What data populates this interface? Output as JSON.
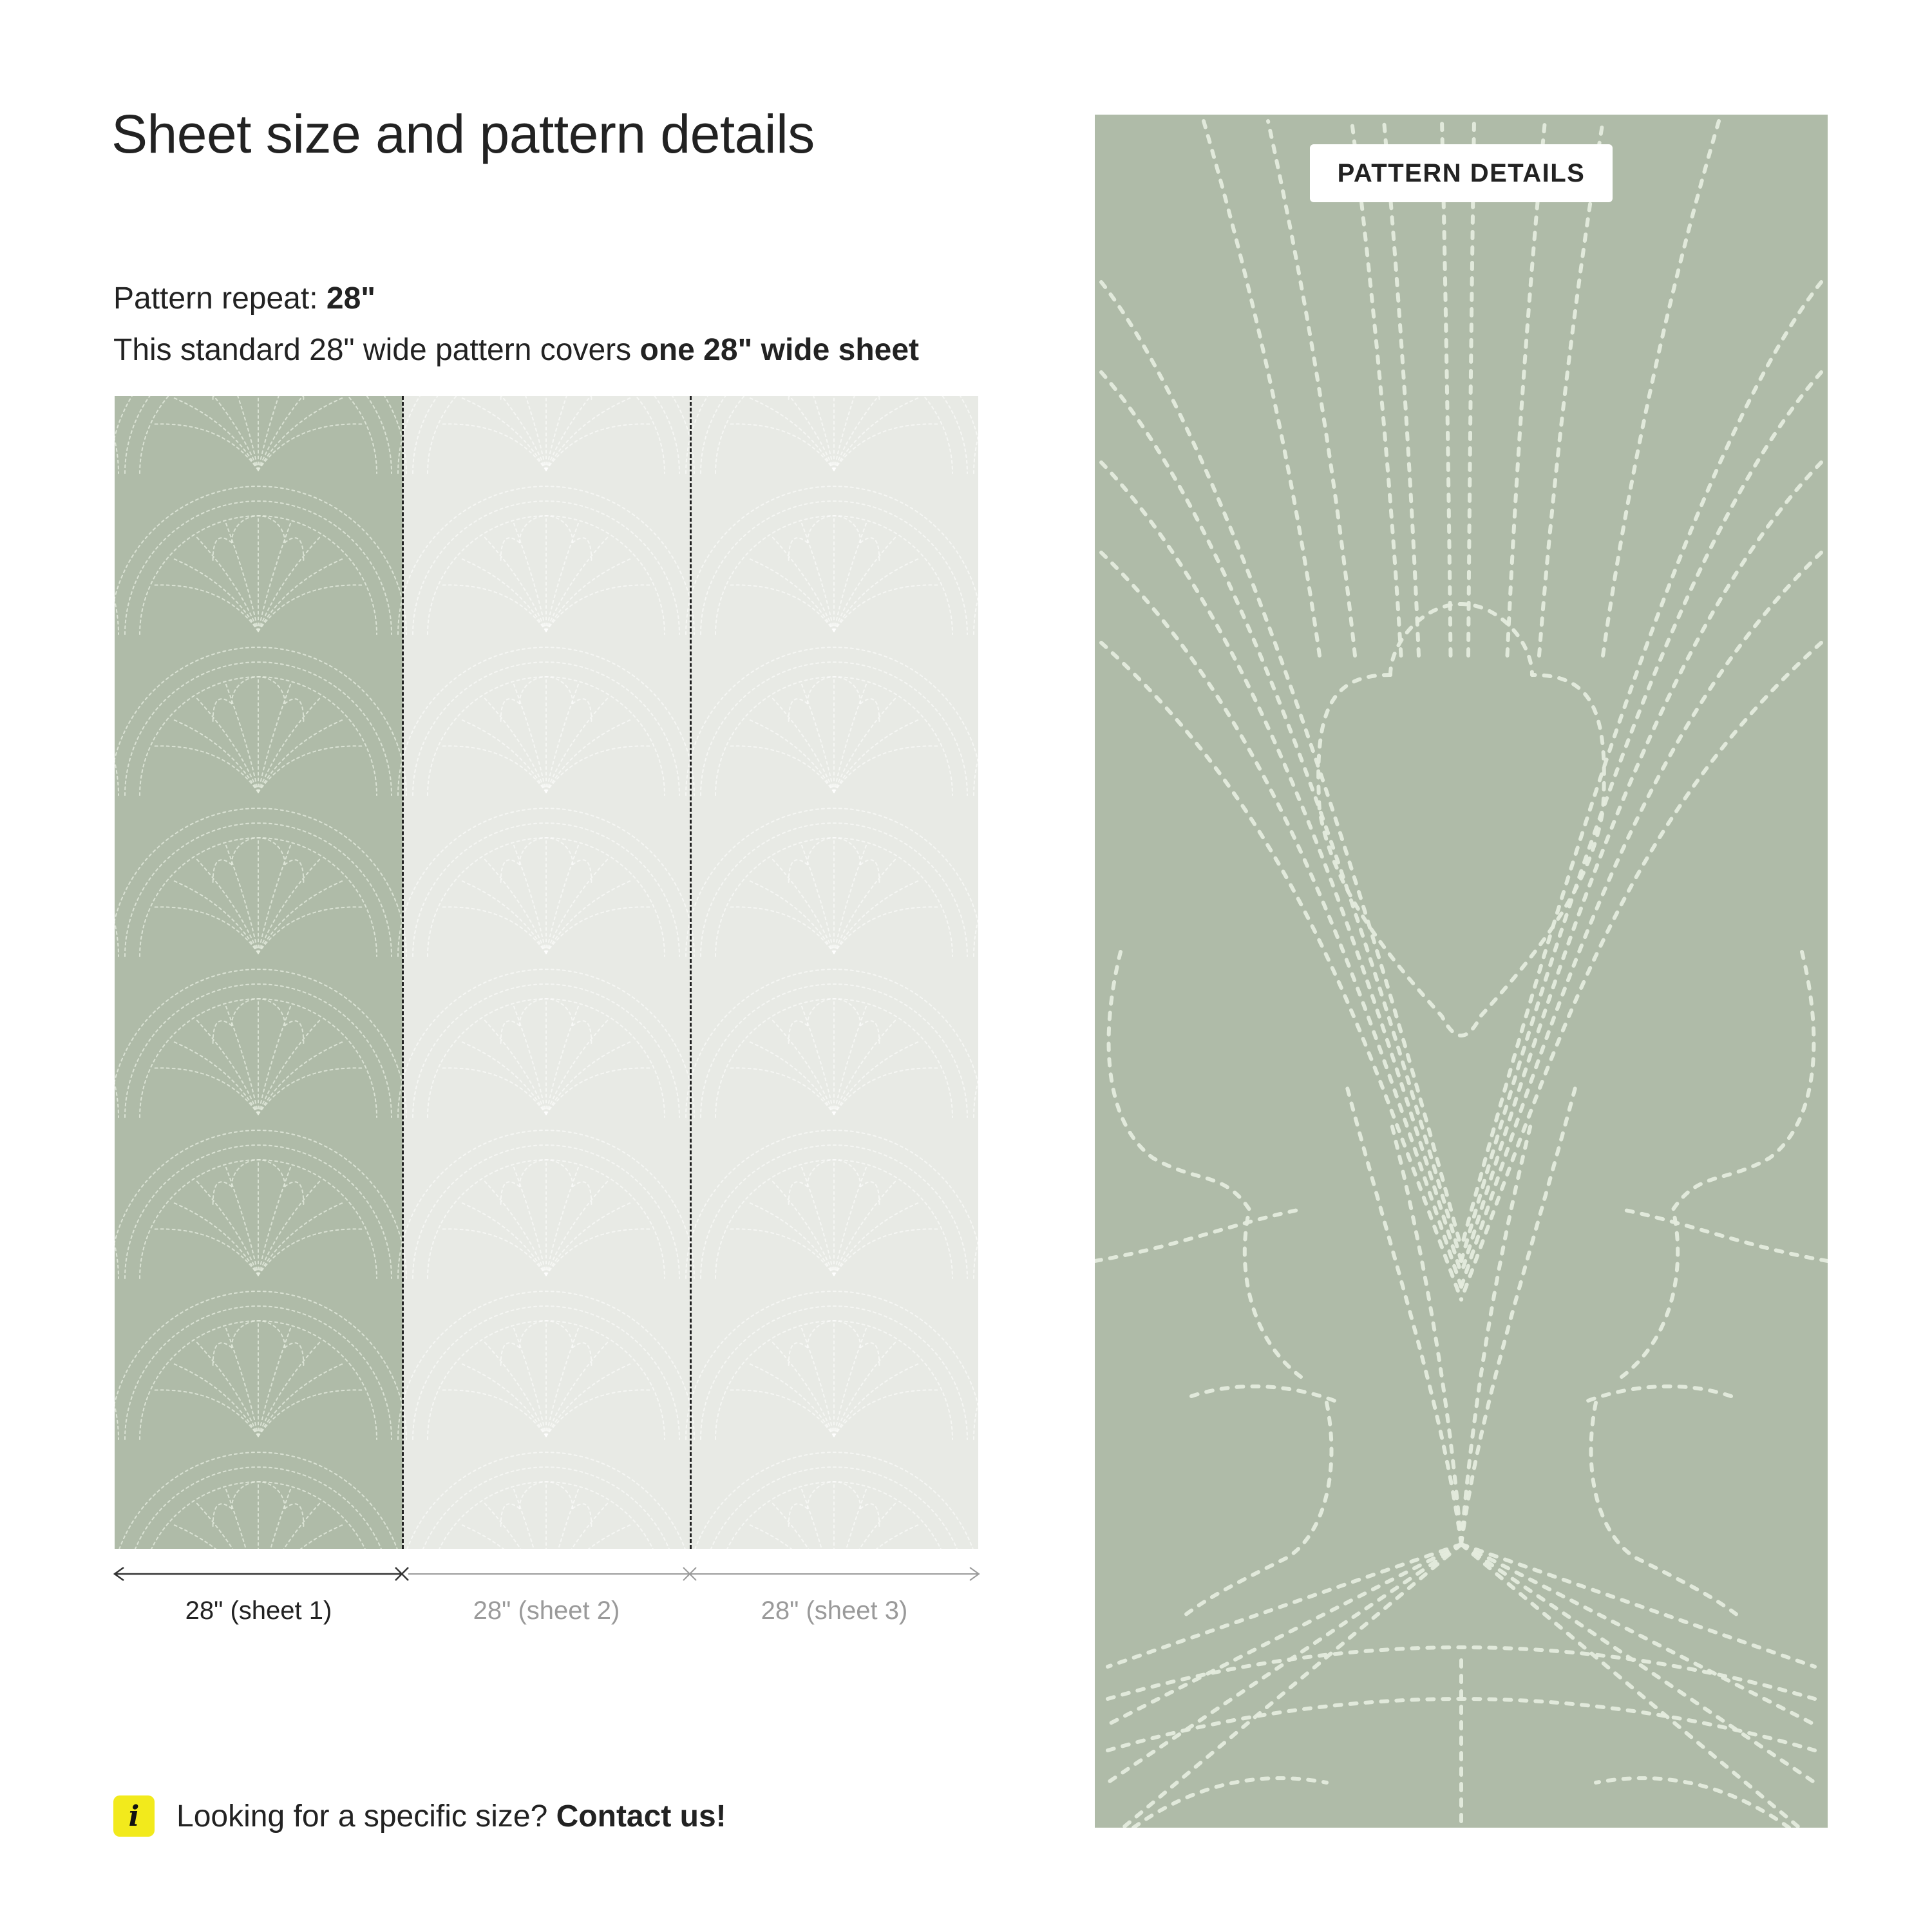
{
  "page_title": "Sheet size and pattern details",
  "pattern_repeat": {
    "label": "Pattern repeat: ",
    "value": "28\""
  },
  "coverage": {
    "text": "This standard 28\" wide pattern covers ",
    "emphasis": "one 28\" wide sheet"
  },
  "sheets": [
    {
      "label": "28\" (sheet 1)",
      "state": "active"
    },
    {
      "label": "28\" (sheet 2)",
      "state": "muted"
    },
    {
      "label": "28\" (sheet 3)",
      "state": "muted"
    }
  ],
  "contact": {
    "icon": "info-icon",
    "icon_glyph": "i",
    "question": "Looking for a specific size? ",
    "link": "Contact us!"
  },
  "detail_panel": {
    "label": "PATTERN DETAILS"
  },
  "colors": {
    "pattern_green": "#afbba8",
    "sheet_inactive": "#e8eae5",
    "pattern_line": "#e4ebdd",
    "info_badge": "#f2ea1c",
    "muted_text": "#9a9a9a"
  }
}
